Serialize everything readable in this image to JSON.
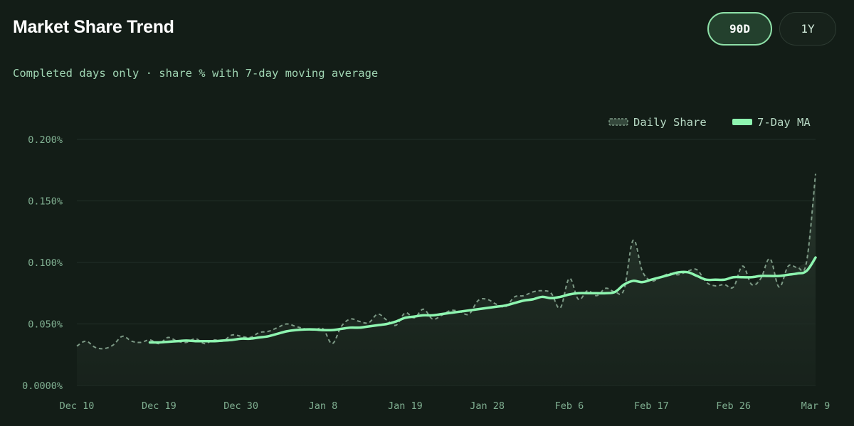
{
  "header": {
    "title": "Market Share Trend",
    "subtitle": "Completed days only · share % with 7-day moving average"
  },
  "range_toggle": {
    "options": [
      {
        "label": "90D",
        "active": true
      },
      {
        "label": "1Y",
        "active": false
      }
    ]
  },
  "colors": {
    "background": "#131d17",
    "accent": "#8ef5b0",
    "daily_line": "#7d9a86",
    "grid": "#223028"
  },
  "chart_data": {
    "type": "line",
    "title": "",
    "xlabel": "",
    "ylabel": "",
    "ylim": [
      0,
      0.2
    ],
    "yticks": [
      0,
      0.05,
      0.1,
      0.15,
      0.2
    ],
    "ytick_labels": [
      "0.0000%",
      "0.050%",
      "0.100%",
      "0.150%",
      "0.200%"
    ],
    "xtick_labels": [
      "Dec 10",
      "Dec 19",
      "Dec 30",
      "Jan 8",
      "Jan 19",
      "Jan 28",
      "Feb 6",
      "Feb 17",
      "Feb 26",
      "Mar 9"
    ],
    "legend": {
      "position": "top-right",
      "entries": [
        "Daily Share",
        "7-Day MA"
      ]
    },
    "series": [
      {
        "name": "Daily Share",
        "style": "dashed",
        "values": [
          0.032,
          0.036,
          0.031,
          0.03,
          0.033,
          0.04,
          0.036,
          0.035,
          0.037,
          0.034,
          0.039,
          0.036,
          0.035,
          0.038,
          0.034,
          0.037,
          0.036,
          0.041,
          0.04,
          0.039,
          0.043,
          0.044,
          0.047,
          0.05,
          0.048,
          0.046,
          0.045,
          0.046,
          0.034,
          0.048,
          0.054,
          0.052,
          0.051,
          0.058,
          0.053,
          0.049,
          0.059,
          0.055,
          0.062,
          0.054,
          0.057,
          0.061,
          0.06,
          0.058,
          0.069,
          0.07,
          0.066,
          0.064,
          0.072,
          0.073,
          0.076,
          0.077,
          0.075,
          0.063,
          0.087,
          0.07,
          0.077,
          0.073,
          0.079,
          0.076,
          0.078,
          0.118,
          0.093,
          0.085,
          0.088,
          0.091,
          0.09,
          0.093,
          0.094,
          0.084,
          0.081,
          0.082,
          0.08,
          0.097,
          0.082,
          0.087,
          0.103,
          0.08,
          0.097,
          0.096,
          0.1,
          0.172
        ]
      },
      {
        "name": "7-Day MA",
        "style": "solid",
        "values": [
          null,
          null,
          null,
          null,
          null,
          null,
          null,
          null,
          0.035,
          0.035,
          0.0355,
          0.036,
          0.0365,
          0.036,
          0.036,
          0.036,
          0.0365,
          0.037,
          0.038,
          0.038,
          0.039,
          0.04,
          0.042,
          0.044,
          0.045,
          0.0455,
          0.0455,
          0.045,
          0.045,
          0.046,
          0.047,
          0.047,
          0.048,
          0.049,
          0.05,
          0.052,
          0.055,
          0.056,
          0.057,
          0.057,
          0.058,
          0.059,
          0.06,
          0.061,
          0.062,
          0.063,
          0.064,
          0.065,
          0.067,
          0.069,
          0.07,
          0.072,
          0.071,
          0.072,
          0.074,
          0.075,
          0.075,
          0.075,
          0.075,
          0.076,
          0.082,
          0.085,
          0.084,
          0.086,
          0.088,
          0.09,
          0.092,
          0.092,
          0.089,
          0.086,
          0.086,
          0.086,
          0.088,
          0.088,
          0.088,
          0.089,
          0.089,
          0.089,
          0.09,
          0.091,
          0.093,
          0.104
        ]
      }
    ]
  }
}
